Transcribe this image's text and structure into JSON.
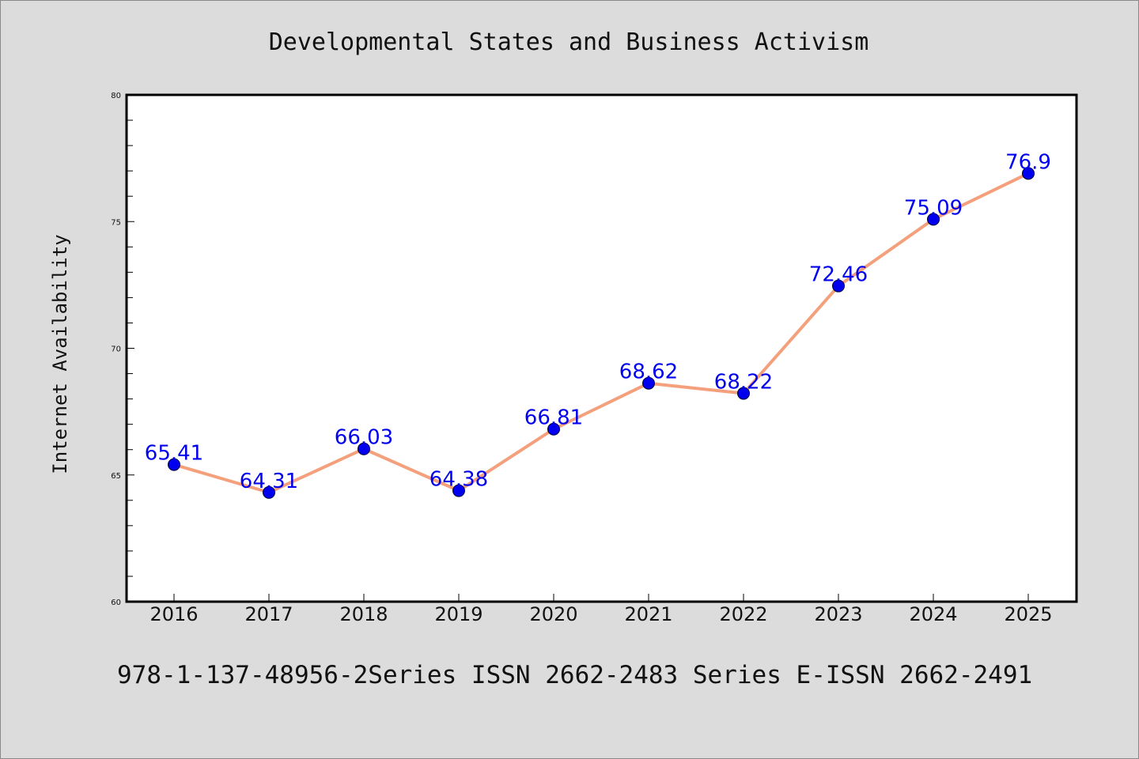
{
  "chart_data": {
    "type": "line",
    "title": "Developmental States and Business Activism",
    "ylabel": "Internet Availability",
    "xlabel": "",
    "categories": [
      "2016",
      "2017",
      "2018",
      "2019",
      "2020",
      "2021",
      "2022",
      "2023",
      "2024",
      "2025"
    ],
    "series": [
      {
        "values": [
          65.41,
          64.31,
          66.03,
          64.38,
          66.81,
          68.62,
          68.22,
          72.46,
          75.09,
          76.9
        ]
      }
    ],
    "data_labels": [
      "65.41",
      "64.31",
      "66.03",
      "64.38",
      "66.81",
      "68.62",
      "68.22",
      "72.46",
      "75.09",
      "76.9"
    ],
    "ylim": [
      60,
      80
    ],
    "yticks": [
      60,
      65,
      70,
      75,
      80
    ],
    "ytick_labels": [
      "60",
      "65",
      "70",
      "75",
      "80"
    ],
    "minor_tick_step": 1,
    "grid": false,
    "colors": {
      "line": "#f4a07c",
      "marker": "#0000ee",
      "label": "#0000ee",
      "plot_bg": "#ffffff",
      "page_bg": "#dcdcdc"
    }
  },
  "footer_text": "978-1-137-48956-2Series ISSN 2662-2483 Series E-ISSN 2662-2491"
}
